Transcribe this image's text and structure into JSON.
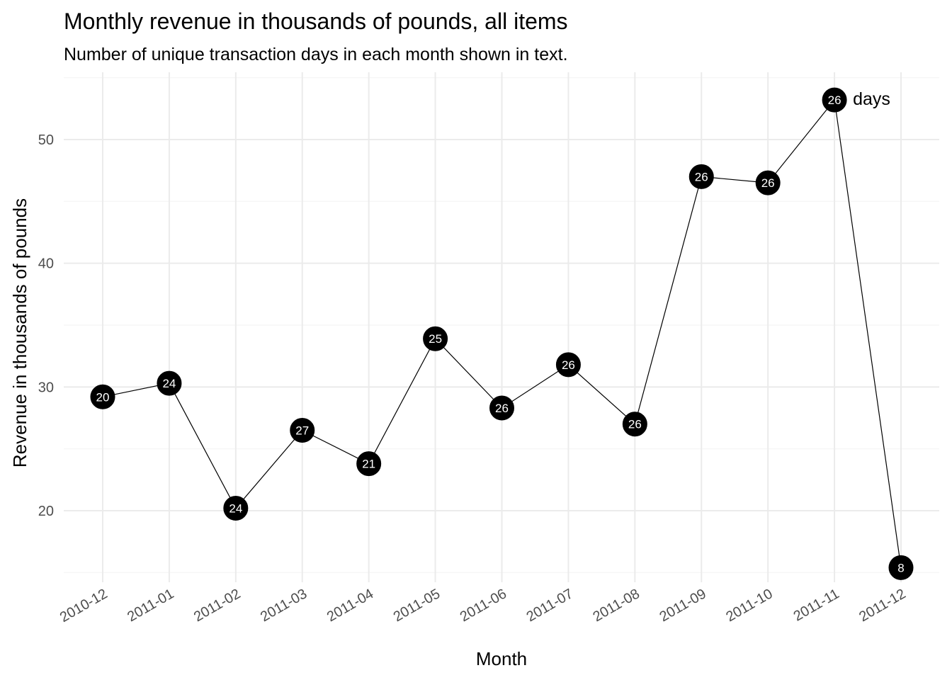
{
  "chart_data": {
    "type": "line",
    "title": "Monthly revenue in thousands of pounds, all items",
    "subtitle": "Number of unique transaction days in each month shown in text.",
    "xlabel": "Month",
    "ylabel": "Revenue in thousands of pounds",
    "categories": [
      "2010-12",
      "2011-01",
      "2011-02",
      "2011-03",
      "2011-04",
      "2011-05",
      "2011-06",
      "2011-07",
      "2011-08",
      "2011-09",
      "2011-10",
      "2011-11",
      "2011-12"
    ],
    "series": [
      {
        "values": [
          29.2,
          30.3,
          20.2,
          26.5,
          23.8,
          33.9,
          28.3,
          31.8,
          27.0,
          47.0,
          46.5,
          53.2,
          15.4
        ],
        "point_labels": [
          "20",
          "24",
          "24",
          "27",
          "21",
          "25",
          "26",
          "26",
          "26",
          "26",
          "26",
          "26",
          "8"
        ]
      }
    ],
    "annotation": {
      "text": "days",
      "category": "2011-11"
    },
    "ylim": [
      14.5,
      55.5
    ],
    "yticks": [
      20,
      30,
      40,
      50
    ],
    "grid": true,
    "colors": {
      "line": "#000000",
      "point": "#000000",
      "point_label": "#ffffff",
      "grid": "#ebebeb"
    }
  }
}
